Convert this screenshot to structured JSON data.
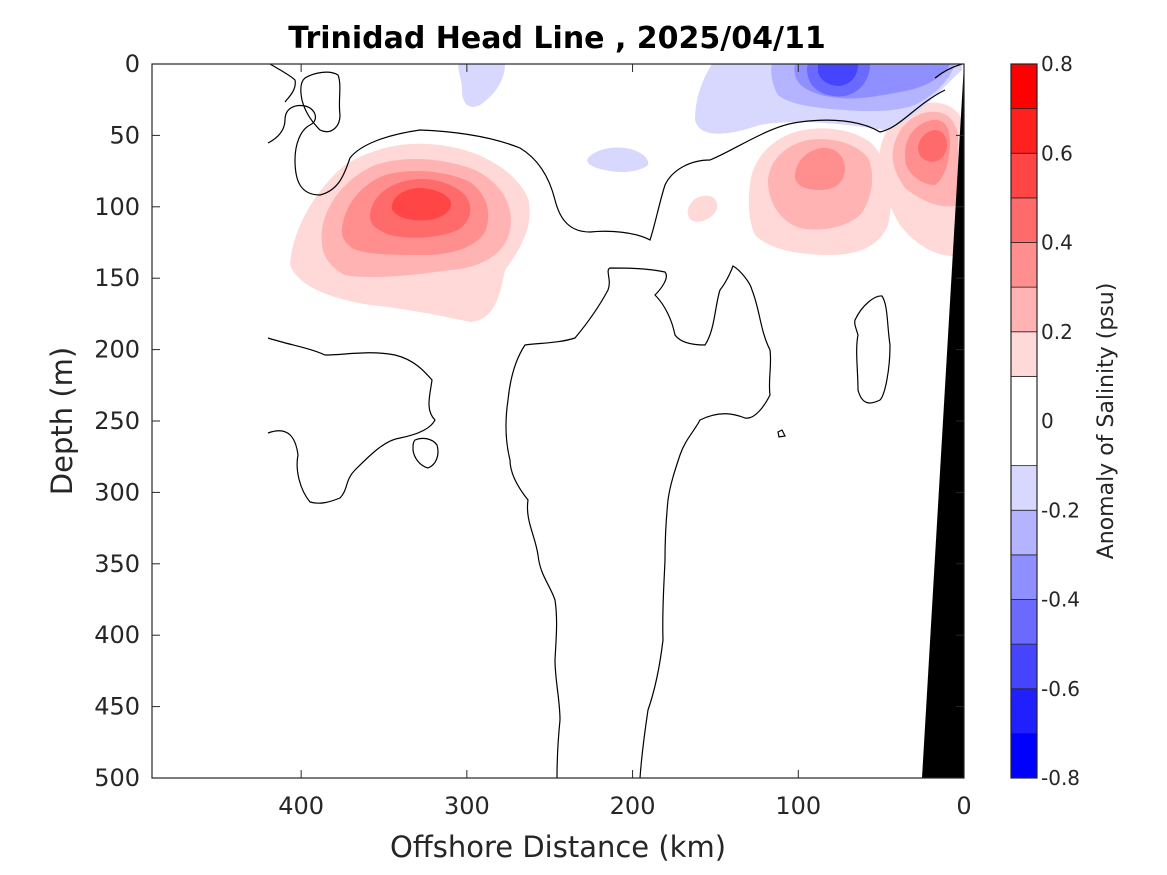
{
  "chart_data": {
    "type": "contour",
    "title": "Trinidad Head Line , 2025/04/11",
    "xlabel": "Offshore Distance (km)",
    "ylabel": "Depth (m)",
    "xlim": [
      490,
      0
    ],
    "ylim": [
      500,
      0
    ],
    "x_ticks": [
      "400",
      "300",
      "200",
      "100",
      "0"
    ],
    "y_ticks": [
      "0",
      "50",
      "100",
      "150",
      "200",
      "250",
      "300",
      "350",
      "400",
      "450",
      "500"
    ],
    "x_tick_values": [
      400,
      300,
      200,
      100,
      0
    ],
    "y_tick_values": [
      0,
      50,
      100,
      150,
      200,
      250,
      300,
      350,
      400,
      450,
      500
    ],
    "colorbar": {
      "label": "Anomaly of Salinity (psu)",
      "range": [
        -0.8,
        0.8
      ],
      "ticks": [
        "0.8",
        "0.6",
        "0.4",
        "0.2",
        "0",
        "-0.2",
        "-0.4",
        "-0.6",
        "-0.8"
      ],
      "tick_values": [
        0.8,
        0.6,
        0.4,
        0.2,
        0,
        -0.2,
        -0.4,
        -0.6,
        -0.8
      ],
      "levels": [
        -0.8,
        -0.7,
        -0.6,
        -0.5,
        -0.4,
        -0.3,
        -0.2,
        -0.1,
        0.1,
        0.2,
        0.3,
        0.4,
        0.5,
        0.6,
        0.7,
        0.8
      ],
      "colors": [
        "#0000ff",
        "#2020ff",
        "#4545ff",
        "#6a6aff",
        "#8f8fff",
        "#b3b3ff",
        "#d8d8ff",
        "#ffffff",
        "#ffd8d8",
        "#ffb3b3",
        "#ff8f8f",
        "#ff6a6a",
        "#ff4545",
        "#ff2020",
        "#ff0000"
      ]
    },
    "features": [
      {
        "name": "salty core offshore",
        "center_km": 325,
        "center_depth_m": 95,
        "peak_anomaly": 0.5
      },
      {
        "name": "salty core near 80 km",
        "center_km": 80,
        "center_depth_m": 80,
        "peak_anomaly": 0.3
      },
      {
        "name": "salty core near 20 km",
        "center_km": 20,
        "center_depth_m": 60,
        "peak_anomaly": 0.4
      },
      {
        "name": "fresh surface near 80 km",
        "center_km": 80,
        "center_depth_m": 10,
        "peak_anomaly": -0.5
      },
      {
        "name": "fresh surface near 280 km",
        "center_km": 280,
        "center_depth_m": 15,
        "peak_anomaly": -0.2
      }
    ],
    "bathymetry": {
      "description": "seafloor wedge at shelf",
      "points": [
        [
          25,
          500
        ],
        [
          0,
          500
        ],
        [
          0,
          0
        ]
      ]
    },
    "grid": false,
    "legend": "colorbar-right"
  }
}
